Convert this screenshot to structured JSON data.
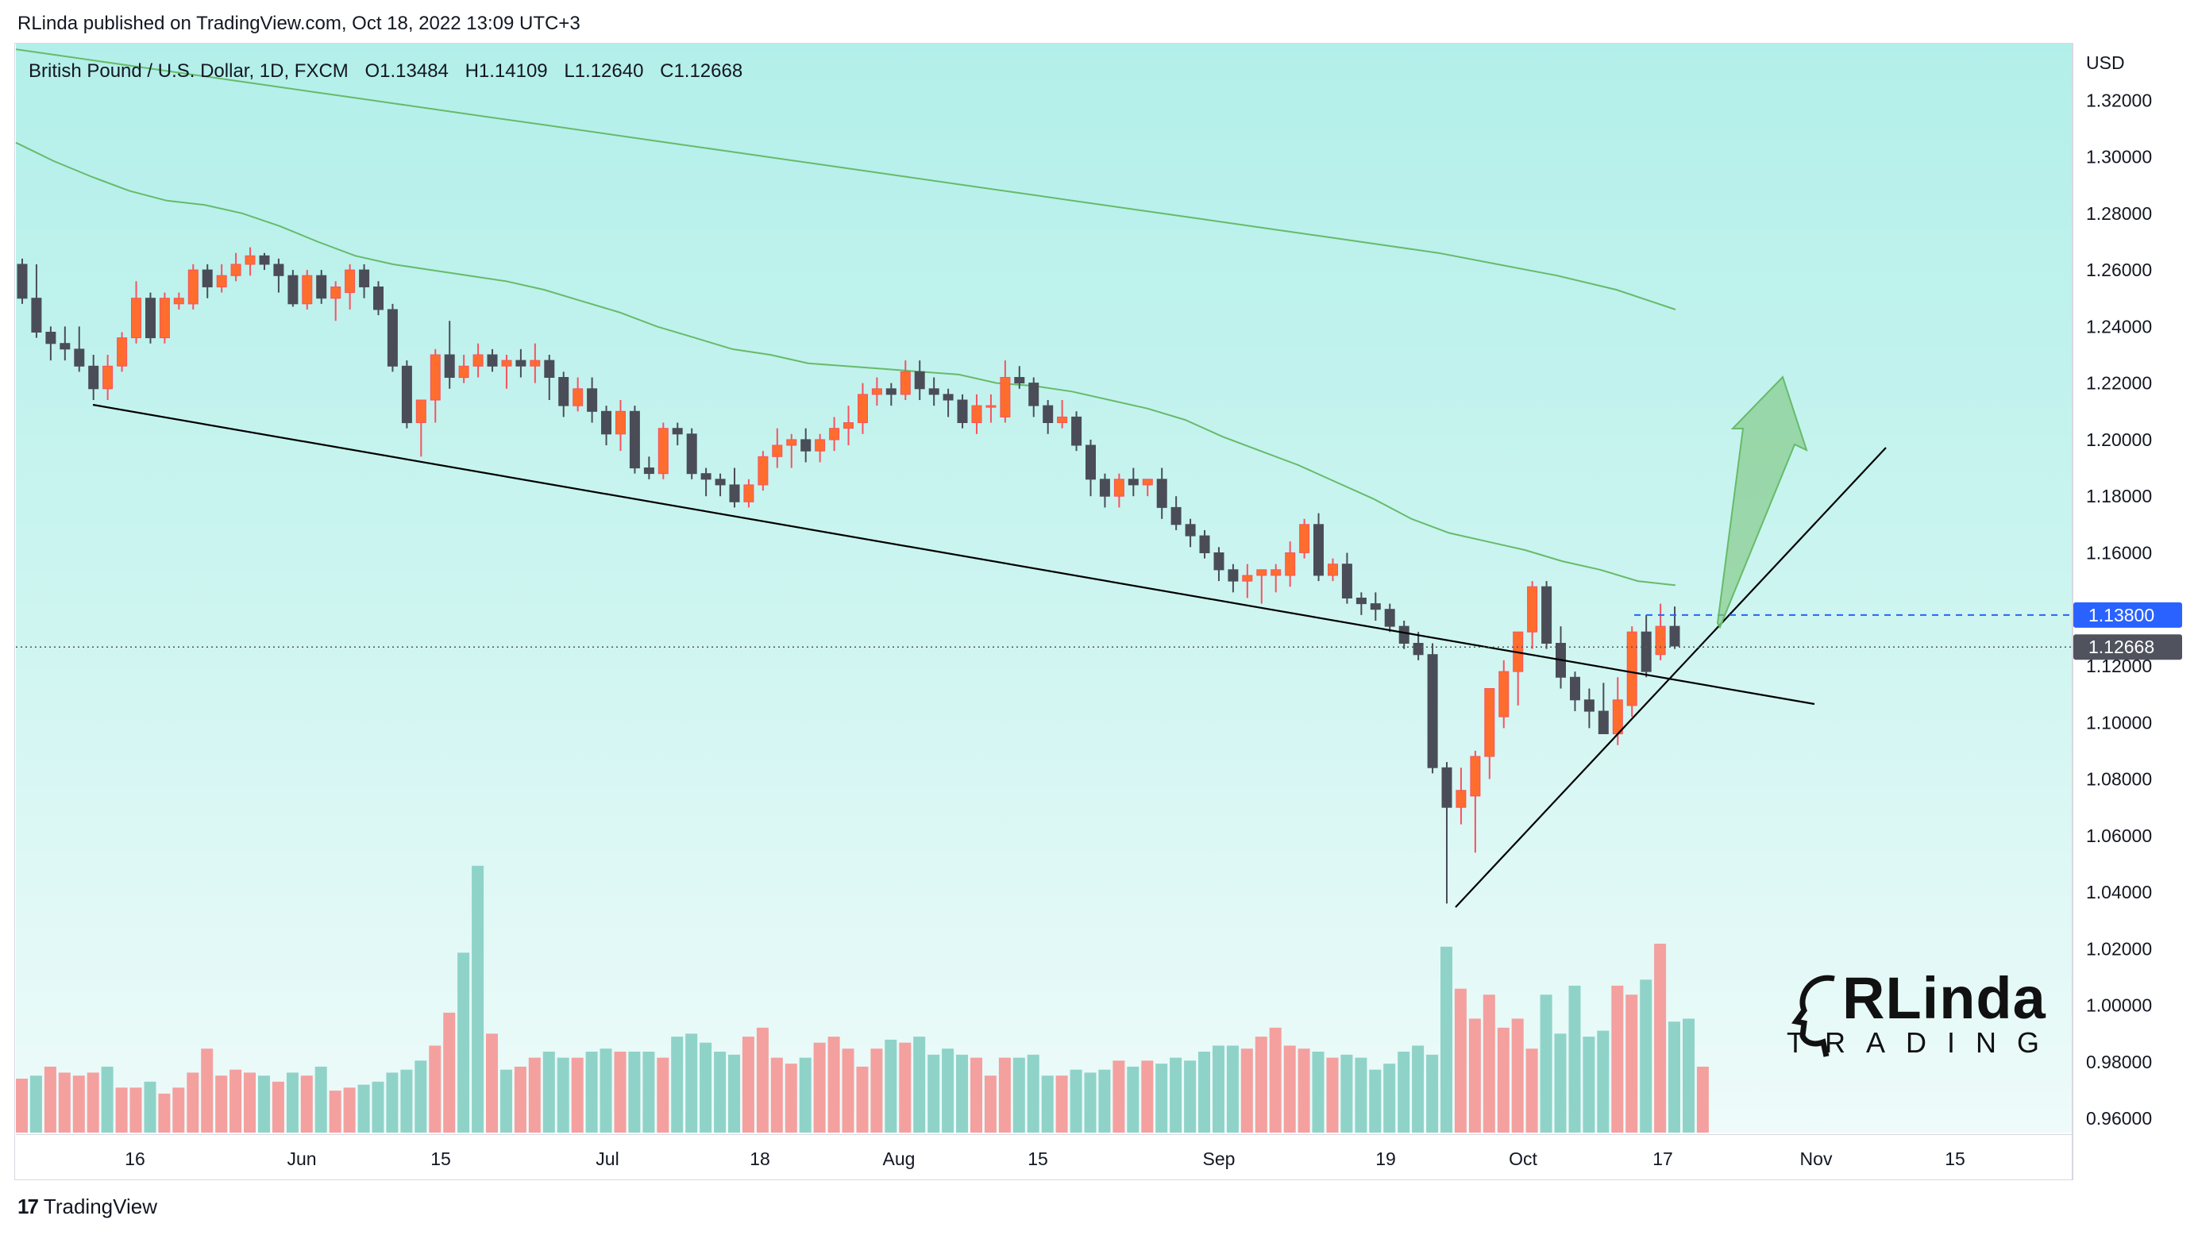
{
  "header": {
    "publisher_line": "RLinda published on TradingView.com, Oct 18, 2022 13:09 UTC+3"
  },
  "legend": {
    "symbol": "British Pound / U.S. Dollar, 1D, FXCM",
    "open": "O1.13484",
    "high": "H1.14109",
    "low": "L1.12640",
    "close": "C1.12668"
  },
  "footer": {
    "brand": "TradingView"
  },
  "watermark": {
    "top": "RLinda",
    "bottom": "TRADING"
  },
  "colors": {
    "up": "#f7525f",
    "up_body": "#ff6d2e",
    "down": "#4a4d57",
    "vol_up": "#f4a09f",
    "vol_down": "#8fd3c8",
    "ma": "#66bb6a",
    "arrow": "#81c784",
    "label_blue": "#2962ff"
  },
  "chart_data": {
    "type": "candlestick",
    "title": "British Pound / U.S. Dollar, 1D, FXCM",
    "price_axis_unit": "USD",
    "price_ticks": [
      "1.32000",
      "1.30000",
      "1.28000",
      "1.26000",
      "1.24000",
      "1.22000",
      "1.20000",
      "1.18000",
      "1.16000",
      "1.14000",
      "1.12000",
      "1.10000",
      "1.08000",
      "1.06000",
      "1.04000",
      "1.02000",
      "1.00000",
      "0.98000",
      "0.96000"
    ],
    "time_ticks": [
      "16",
      "Jun",
      "15",
      "Jul",
      "18",
      "Aug",
      "15",
      "Sep",
      "19",
      "Oct",
      "17",
      "Nov",
      "15"
    ],
    "ylim": [
      0.955,
      1.34
    ],
    "price_labels": {
      "target": "1.13800",
      "last": "1.12668"
    },
    "candles": [
      [
        1.262,
        1.264,
        1.248,
        1.25
      ],
      [
        1.25,
        1.262,
        1.236,
        1.238
      ],
      [
        1.238,
        1.24,
        1.228,
        1.234
      ],
      [
        1.234,
        1.24,
        1.228,
        1.232
      ],
      [
        1.232,
        1.24,
        1.224,
        1.226
      ],
      [
        1.226,
        1.23,
        1.214,
        1.218
      ],
      [
        1.218,
        1.23,
        1.214,
        1.226
      ],
      [
        1.226,
        1.238,
        1.224,
        1.236
      ],
      [
        1.236,
        1.256,
        1.234,
        1.25
      ],
      [
        1.25,
        1.252,
        1.234,
        1.236
      ],
      [
        1.236,
        1.252,
        1.234,
        1.25
      ],
      [
        1.248,
        1.252,
        1.246,
        1.25
      ],
      [
        1.248,
        1.262,
        1.246,
        1.26
      ],
      [
        1.26,
        1.262,
        1.25,
        1.254
      ],
      [
        1.254,
        1.262,
        1.252,
        1.258
      ],
      [
        1.258,
        1.266,
        1.256,
        1.262
      ],
      [
        1.262,
        1.268,
        1.258,
        1.265
      ],
      [
        1.265,
        1.266,
        1.26,
        1.262
      ],
      [
        1.262,
        1.264,
        1.252,
        1.258
      ],
      [
        1.258,
        1.26,
        1.247,
        1.248
      ],
      [
        1.248,
        1.26,
        1.246,
        1.258
      ],
      [
        1.258,
        1.26,
        1.248,
        1.25
      ],
      [
        1.25,
        1.256,
        1.242,
        1.254
      ],
      [
        1.252,
        1.262,
        1.246,
        1.26
      ],
      [
        1.26,
        1.262,
        1.25,
        1.254
      ],
      [
        1.254,
        1.256,
        1.244,
        1.246
      ],
      [
        1.246,
        1.248,
        1.224,
        1.226
      ],
      [
        1.226,
        1.228,
        1.204,
        1.206
      ],
      [
        1.206,
        1.212,
        1.194,
        1.214
      ],
      [
        1.214,
        1.232,
        1.206,
        1.23
      ],
      [
        1.23,
        1.242,
        1.218,
        1.222
      ],
      [
        1.222,
        1.23,
        1.22,
        1.226
      ],
      [
        1.226,
        1.234,
        1.222,
        1.23
      ],
      [
        1.23,
        1.232,
        1.224,
        1.226
      ],
      [
        1.226,
        1.23,
        1.218,
        1.228
      ],
      [
        1.228,
        1.232,
        1.222,
        1.226
      ],
      [
        1.226,
        1.234,
        1.22,
        1.228
      ],
      [
        1.228,
        1.23,
        1.214,
        1.222
      ],
      [
        1.222,
        1.224,
        1.208,
        1.212
      ],
      [
        1.212,
        1.222,
        1.21,
        1.218
      ],
      [
        1.218,
        1.222,
        1.206,
        1.21
      ],
      [
        1.21,
        1.212,
        1.198,
        1.202
      ],
      [
        1.202,
        1.214,
        1.196,
        1.21
      ],
      [
        1.21,
        1.212,
        1.188,
        1.19
      ],
      [
        1.19,
        1.194,
        1.186,
        1.188
      ],
      [
        1.188,
        1.206,
        1.186,
        1.204
      ],
      [
        1.204,
        1.206,
        1.198,
        1.202
      ],
      [
        1.202,
        1.204,
        1.186,
        1.188
      ],
      [
        1.188,
        1.19,
        1.18,
        1.186
      ],
      [
        1.186,
        1.188,
        1.18,
        1.184
      ],
      [
        1.184,
        1.19,
        1.176,
        1.178
      ],
      [
        1.178,
        1.186,
        1.176,
        1.184
      ],
      [
        1.184,
        1.196,
        1.182,
        1.194
      ],
      [
        1.194,
        1.204,
        1.19,
        1.198
      ],
      [
        1.198,
        1.202,
        1.19,
        1.2
      ],
      [
        1.2,
        1.204,
        1.192,
        1.196
      ],
      [
        1.196,
        1.202,
        1.192,
        1.2
      ],
      [
        1.2,
        1.208,
        1.196,
        1.204
      ],
      [
        1.204,
        1.212,
        1.198,
        1.206
      ],
      [
        1.206,
        1.22,
        1.202,
        1.216
      ],
      [
        1.216,
        1.222,
        1.212,
        1.218
      ],
      [
        1.218,
        1.22,
        1.212,
        1.216
      ],
      [
        1.216,
        1.228,
        1.214,
        1.224
      ],
      [
        1.224,
        1.228,
        1.214,
        1.218
      ],
      [
        1.218,
        1.222,
        1.212,
        1.216
      ],
      [
        1.216,
        1.218,
        1.208,
        1.214
      ],
      [
        1.214,
        1.216,
        1.204,
        1.206
      ],
      [
        1.206,
        1.216,
        1.202,
        1.212
      ],
      [
        1.212,
        1.216,
        1.206,
        1.212
      ],
      [
        1.208,
        1.228,
        1.206,
        1.222
      ],
      [
        1.222,
        1.226,
        1.218,
        1.22
      ],
      [
        1.22,
        1.222,
        1.208,
        1.212
      ],
      [
        1.212,
        1.214,
        1.202,
        1.206
      ],
      [
        1.206,
        1.214,
        1.204,
        1.208
      ],
      [
        1.208,
        1.21,
        1.196,
        1.198
      ],
      [
        1.198,
        1.2,
        1.18,
        1.186
      ],
      [
        1.186,
        1.188,
        1.176,
        1.18
      ],
      [
        1.18,
        1.188,
        1.176,
        1.186
      ],
      [
        1.186,
        1.19,
        1.18,
        1.184
      ],
      [
        1.184,
        1.186,
        1.18,
        1.186
      ],
      [
        1.186,
        1.19,
        1.172,
        1.176
      ],
      [
        1.176,
        1.18,
        1.168,
        1.17
      ],
      [
        1.17,
        1.172,
        1.162,
        1.166
      ],
      [
        1.166,
        1.168,
        1.158,
        1.16
      ],
      [
        1.16,
        1.162,
        1.15,
        1.154
      ],
      [
        1.154,
        1.156,
        1.146,
        1.15
      ],
      [
        1.15,
        1.156,
        1.144,
        1.152
      ],
      [
        1.152,
        1.154,
        1.142,
        1.154
      ],
      [
        1.152,
        1.156,
        1.146,
        1.154
      ],
      [
        1.152,
        1.164,
        1.148,
        1.16
      ],
      [
        1.16,
        1.172,
        1.158,
        1.17
      ],
      [
        1.17,
        1.174,
        1.15,
        1.152
      ],
      [
        1.152,
        1.158,
        1.15,
        1.156
      ],
      [
        1.156,
        1.16,
        1.142,
        1.144
      ],
      [
        1.144,
        1.146,
        1.138,
        1.142
      ],
      [
        1.142,
        1.146,
        1.136,
        1.14
      ],
      [
        1.14,
        1.142,
        1.132,
        1.134
      ],
      [
        1.134,
        1.136,
        1.126,
        1.128
      ],
      [
        1.128,
        1.132,
        1.122,
        1.124
      ],
      [
        1.124,
        1.128,
        1.082,
        1.084
      ],
      [
        1.084,
        1.086,
        1.036,
        1.07
      ],
      [
        1.07,
        1.084,
        1.064,
        1.076
      ],
      [
        1.074,
        1.09,
        1.054,
        1.088
      ],
      [
        1.088,
        1.11,
        1.08,
        1.112
      ],
      [
        1.102,
        1.122,
        1.098,
        1.118
      ],
      [
        1.118,
        1.13,
        1.106,
        1.132
      ],
      [
        1.132,
        1.15,
        1.126,
        1.148
      ],
      [
        1.148,
        1.15,
        1.126,
        1.128
      ],
      [
        1.128,
        1.134,
        1.112,
        1.116
      ],
      [
        1.116,
        1.118,
        1.104,
        1.108
      ],
      [
        1.108,
        1.112,
        1.098,
        1.104
      ],
      [
        1.104,
        1.114,
        1.096,
        1.096
      ],
      [
        1.096,
        1.116,
        1.092,
        1.108
      ],
      [
        1.106,
        1.134,
        1.102,
        1.132
      ],
      [
        1.132,
        1.138,
        1.116,
        1.118
      ],
      [
        1.124,
        1.142,
        1.122,
        1.134
      ],
      [
        1.134,
        1.141,
        1.126,
        1.127
      ]
    ],
    "volumes": [
      18,
      19,
      22,
      20,
      19,
      20,
      22,
      15,
      15,
      17,
      13,
      15,
      20,
      28,
      19,
      21,
      20,
      19,
      17,
      20,
      19,
      22,
      14,
      15,
      16,
      17,
      20,
      21,
      24,
      29,
      40,
      60,
      89,
      33,
      21,
      22,
      25,
      27,
      25,
      25,
      27,
      28,
      27,
      27,
      27,
      25,
      32,
      33,
      30,
      27,
      26,
      32,
      35,
      25,
      23,
      25,
      30,
      32,
      28,
      22,
      28,
      31,
      30,
      32,
      26,
      28,
      26,
      25,
      19,
      25,
      25,
      26,
      19,
      19,
      21,
      20,
      21,
      24,
      22,
      24,
      23,
      25,
      24,
      27,
      29,
      29,
      28,
      32,
      35,
      29,
      28,
      27,
      25,
      26,
      25,
      21,
      23,
      27,
      29,
      26,
      62,
      48,
      38,
      46,
      35,
      38,
      28,
      46,
      33,
      49,
      32,
      34,
      49,
      46,
      51,
      63,
      37,
      38,
      22
    ],
    "volume_up": [
      1,
      0,
      1,
      1,
      1,
      1,
      0,
      1,
      1,
      0,
      1,
      1,
      1,
      1,
      1,
      1,
      1,
      0,
      1,
      0,
      1,
      0,
      1,
      1,
      0,
      0,
      0,
      0,
      0,
      1,
      1,
      0,
      0,
      1,
      0,
      1,
      1,
      0,
      0,
      1,
      0,
      0,
      1,
      0,
      0,
      1,
      0,
      0,
      0,
      0,
      0,
      1,
      1,
      1,
      1,
      0,
      1,
      1,
      1,
      1,
      1,
      0,
      1,
      0,
      0,
      0,
      0,
      1,
      1,
      1,
      0,
      0,
      0,
      1,
      0,
      0,
      0,
      1,
      0,
      1,
      0,
      0,
      0,
      0,
      0,
      0,
      1,
      1,
      1,
      1,
      1,
      0,
      1,
      0,
      0,
      0,
      0,
      0,
      0,
      0,
      0,
      1,
      1,
      1,
      1,
      1,
      1,
      0,
      0,
      0,
      0,
      0,
      1,
      1,
      0,
      1,
      0,
      0,
      1
    ],
    "ma_100": [
      1.305,
      1.2985,
      1.293,
      1.288,
      1.2845,
      1.283,
      1.28,
      1.2755,
      1.27,
      1.265,
      1.262,
      1.26,
      1.258,
      1.256,
      1.253,
      1.249,
      1.245,
      1.24,
      1.236,
      1.232,
      1.23,
      1.227,
      1.226,
      1.225,
      1.224,
      1.223,
      1.22,
      1.219,
      1.217,
      1.214,
      1.211,
      1.207,
      1.201,
      1.196,
      1.191,
      1.185,
      1.179,
      1.172,
      1.167,
      1.164,
      1.161,
      1.157,
      1.154,
      1.15,
      1.1485
    ],
    "ma_200": [
      1.338,
      1.335,
      1.332,
      1.329,
      1.326,
      1.323,
      1.32,
      1.317,
      1.314,
      1.311,
      1.308,
      1.305,
      1.302,
      1.299,
      1.296,
      1.293,
      1.29,
      1.287,
      1.284,
      1.281,
      1.278,
      1.275,
      1.272,
      1.269,
      1.266,
      1.262,
      1.258,
      1.253,
      1.246
    ]
  }
}
